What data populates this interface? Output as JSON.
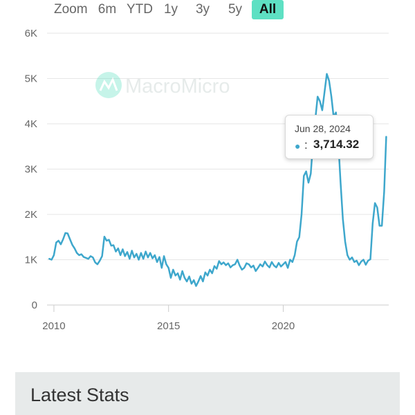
{
  "zoom": {
    "label": "Zoom",
    "buttons": [
      "6m",
      "YTD",
      "1y",
      "3y",
      "5y",
      "All"
    ],
    "active": "All"
  },
  "watermark": "MacroMicro",
  "tooltip": {
    "date": "Jun 28, 2024",
    "separator": ":",
    "value": "3,714.32",
    "dot": "●"
  },
  "stats": {
    "title": "Latest Stats"
  },
  "colors": {
    "line": "#3ea7cc",
    "active_button": "#5ee0c3",
    "grid": "#e6e6e6"
  },
  "chart_data": {
    "type": "line",
    "title": "",
    "xlabel": "",
    "ylabel": "",
    "xlim": [
      2009.7,
      2024.6
    ],
    "ylim": [
      0,
      6000
    ],
    "grid": true,
    "y_ticks": [
      {
        "value": 0,
        "label": "0"
      },
      {
        "value": 1000,
        "label": "1K"
      },
      {
        "value": 2000,
        "label": "2K"
      },
      {
        "value": 3000,
        "label": "3K"
      },
      {
        "value": 4000,
        "label": "4K"
      },
      {
        "value": 5000,
        "label": "5K"
      },
      {
        "value": 6000,
        "label": "6K"
      }
    ],
    "x_ticks": [
      {
        "value": 2010,
        "label": "2010"
      },
      {
        "value": 2015,
        "label": "2015"
      },
      {
        "value": 2020,
        "label": "2020"
      }
    ],
    "series": [
      {
        "values": [
          [
            2009.8,
            1020
          ],
          [
            2009.9,
            1000
          ],
          [
            2010.0,
            1100
          ],
          [
            2010.1,
            1380
          ],
          [
            2010.2,
            1420
          ],
          [
            2010.3,
            1340
          ],
          [
            2010.4,
            1450
          ],
          [
            2010.5,
            1590
          ],
          [
            2010.6,
            1580
          ],
          [
            2010.7,
            1450
          ],
          [
            2010.8,
            1330
          ],
          [
            2010.9,
            1250
          ],
          [
            2011.0,
            1150
          ],
          [
            2011.1,
            1100
          ],
          [
            2011.2,
            1120
          ],
          [
            2011.3,
            1060
          ],
          [
            2011.5,
            1020
          ],
          [
            2011.6,
            1080
          ],
          [
            2011.7,
            1050
          ],
          [
            2011.8,
            940
          ],
          [
            2011.9,
            900
          ],
          [
            2012.0,
            980
          ],
          [
            2012.1,
            1080
          ],
          [
            2012.2,
            1510
          ],
          [
            2012.3,
            1420
          ],
          [
            2012.4,
            1440
          ],
          [
            2012.5,
            1310
          ],
          [
            2012.6,
            1320
          ],
          [
            2012.7,
            1180
          ],
          [
            2012.8,
            1250
          ],
          [
            2012.9,
            1100
          ],
          [
            2013.0,
            1230
          ],
          [
            2013.1,
            1080
          ],
          [
            2013.2,
            1170
          ],
          [
            2013.3,
            1020
          ],
          [
            2013.4,
            1200
          ],
          [
            2013.5,
            1050
          ],
          [
            2013.6,
            1130
          ],
          [
            2013.7,
            1000
          ],
          [
            2013.8,
            1150
          ],
          [
            2013.9,
            1020
          ],
          [
            2014.0,
            1180
          ],
          [
            2014.1,
            1050
          ],
          [
            2014.2,
            1150
          ],
          [
            2014.3,
            1030
          ],
          [
            2014.4,
            1100
          ],
          [
            2014.5,
            950
          ],
          [
            2014.6,
            1060
          ],
          [
            2014.7,
            820
          ],
          [
            2014.8,
            1080
          ],
          [
            2014.9,
            900
          ],
          [
            2015.0,
            820
          ],
          [
            2015.1,
            600
          ],
          [
            2015.2,
            780
          ],
          [
            2015.3,
            650
          ],
          [
            2015.4,
            700
          ],
          [
            2015.5,
            560
          ],
          [
            2015.6,
            750
          ],
          [
            2015.7,
            600
          ],
          [
            2015.8,
            520
          ],
          [
            2015.9,
            630
          ],
          [
            2016.0,
            470
          ],
          [
            2016.1,
            550
          ],
          [
            2016.2,
            420
          ],
          [
            2016.3,
            520
          ],
          [
            2016.4,
            640
          ],
          [
            2016.5,
            520
          ],
          [
            2016.6,
            720
          ],
          [
            2016.7,
            650
          ],
          [
            2016.8,
            780
          ],
          [
            2016.9,
            700
          ],
          [
            2017.0,
            860
          ],
          [
            2017.1,
            800
          ],
          [
            2017.2,
            970
          ],
          [
            2017.3,
            900
          ],
          [
            2017.4,
            940
          ],
          [
            2017.5,
            880
          ],
          [
            2017.6,
            920
          ],
          [
            2017.7,
            830
          ],
          [
            2017.8,
            880
          ],
          [
            2017.9,
            900
          ],
          [
            2018.0,
            1000
          ],
          [
            2018.1,
            870
          ],
          [
            2018.2,
            780
          ],
          [
            2018.3,
            820
          ],
          [
            2018.4,
            920
          ],
          [
            2018.5,
            900
          ],
          [
            2018.6,
            830
          ],
          [
            2018.7,
            870
          ],
          [
            2018.8,
            750
          ],
          [
            2018.9,
            820
          ],
          [
            2019.0,
            900
          ],
          [
            2019.1,
            850
          ],
          [
            2019.2,
            960
          ],
          [
            2019.3,
            880
          ],
          [
            2019.4,
            830
          ],
          [
            2019.5,
            950
          ],
          [
            2019.6,
            870
          ],
          [
            2019.7,
            830
          ],
          [
            2019.8,
            930
          ],
          [
            2019.9,
            850
          ],
          [
            2020.0,
            900
          ],
          [
            2020.1,
            950
          ],
          [
            2020.2,
            820
          ],
          [
            2020.3,
            1000
          ],
          [
            2020.4,
            950
          ],
          [
            2020.5,
            1100
          ],
          [
            2020.6,
            1400
          ],
          [
            2020.7,
            1500
          ],
          [
            2020.8,
            2000
          ],
          [
            2020.9,
            2850
          ],
          [
            2021.0,
            2950
          ],
          [
            2021.1,
            2700
          ],
          [
            2021.2,
            2900
          ],
          [
            2021.3,
            3600
          ],
          [
            2021.4,
            4100
          ],
          [
            2021.5,
            4600
          ],
          [
            2021.6,
            4500
          ],
          [
            2021.7,
            4300
          ],
          [
            2021.8,
            4700
          ],
          [
            2021.9,
            5100
          ],
          [
            2022.0,
            4950
          ],
          [
            2022.1,
            4600
          ],
          [
            2022.2,
            4150
          ],
          [
            2022.3,
            4250
          ],
          [
            2022.4,
            3600
          ],
          [
            2022.5,
            2700
          ],
          [
            2022.6,
            1900
          ],
          [
            2022.7,
            1400
          ],
          [
            2022.8,
            1100
          ],
          [
            2022.9,
            1000
          ],
          [
            2023.0,
            1050
          ],
          [
            2023.1,
            950
          ],
          [
            2023.2,
            980
          ],
          [
            2023.3,
            880
          ],
          [
            2023.4,
            960
          ],
          [
            2023.5,
            1000
          ],
          [
            2023.6,
            890
          ],
          [
            2023.7,
            980
          ],
          [
            2023.8,
            1010
          ],
          [
            2023.9,
            1800
          ],
          [
            2024.0,
            2250
          ],
          [
            2024.1,
            2150
          ],
          [
            2024.2,
            1750
          ],
          [
            2024.3,
            1750
          ],
          [
            2024.4,
            2500
          ],
          [
            2024.49,
            3714.32
          ]
        ]
      }
    ]
  }
}
